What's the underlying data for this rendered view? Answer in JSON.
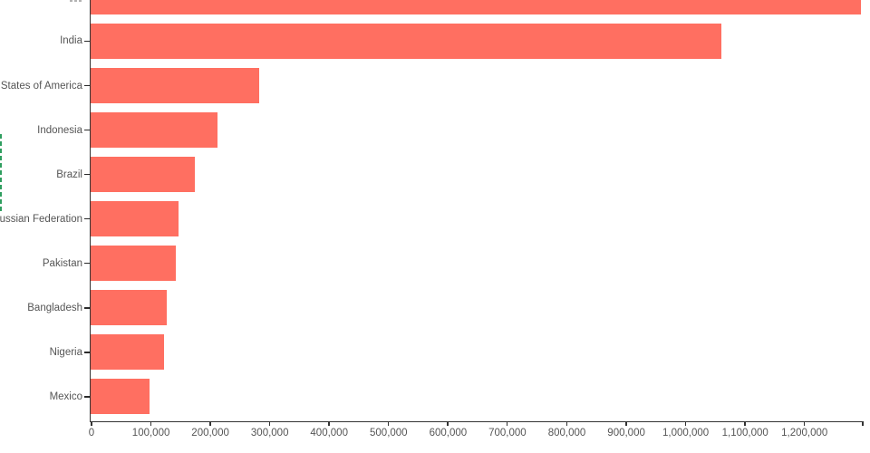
{
  "chart_data": {
    "type": "bar",
    "orientation": "horizontal",
    "title": "",
    "xlabel": "",
    "ylabel": "",
    "categories": [
      "",
      "India",
      "United States of America",
      "Indonesia",
      "Brazil",
      "Russian Federation",
      "Pakistan",
      "Bangladesh",
      "Nigeria",
      "Mexico"
    ],
    "values": [
      1297000,
      1062000,
      284000,
      213000,
      175000,
      148000,
      143000,
      128000,
      123000,
      99000
    ],
    "xlim": [
      0,
      1298000
    ],
    "x_ticks": [
      {
        "value": 0,
        "label": "0"
      },
      {
        "value": 100000,
        "label": "100,000"
      },
      {
        "value": 200000,
        "label": "200,000"
      },
      {
        "value": 300000,
        "label": "300,000"
      },
      {
        "value": 400000,
        "label": "400,000"
      },
      {
        "value": 500000,
        "label": "500,000"
      },
      {
        "value": 600000,
        "label": "600,000"
      },
      {
        "value": 700000,
        "label": "700,000"
      },
      {
        "value": 800000,
        "label": "800,000"
      },
      {
        "value": 900000,
        "label": "900,000"
      },
      {
        "value": 1000000,
        "label": "1,000,000"
      },
      {
        "value": 1100000,
        "label": "1,100,000"
      },
      {
        "value": 1200000,
        "label": "1,200,000"
      },
      {
        "value": 1298000,
        "label": ""
      }
    ],
    "grid": false,
    "legend": false,
    "notes": "Topmost bar and its category label are clipped by the top edge of the view; the rotated y-axis title is clipped at the left edge (only a green sliver of it is visible)."
  },
  "style": {
    "bar_color": "#ff6f61",
    "label_color": "#555555",
    "tick_label_color": "#555555",
    "axis_color": "#333333",
    "tick_color": "#2b2b2b",
    "y_title_color": "#2f9e5f",
    "clipped_fragment_color": "#b3b3b3",
    "background": "#ffffff"
  }
}
